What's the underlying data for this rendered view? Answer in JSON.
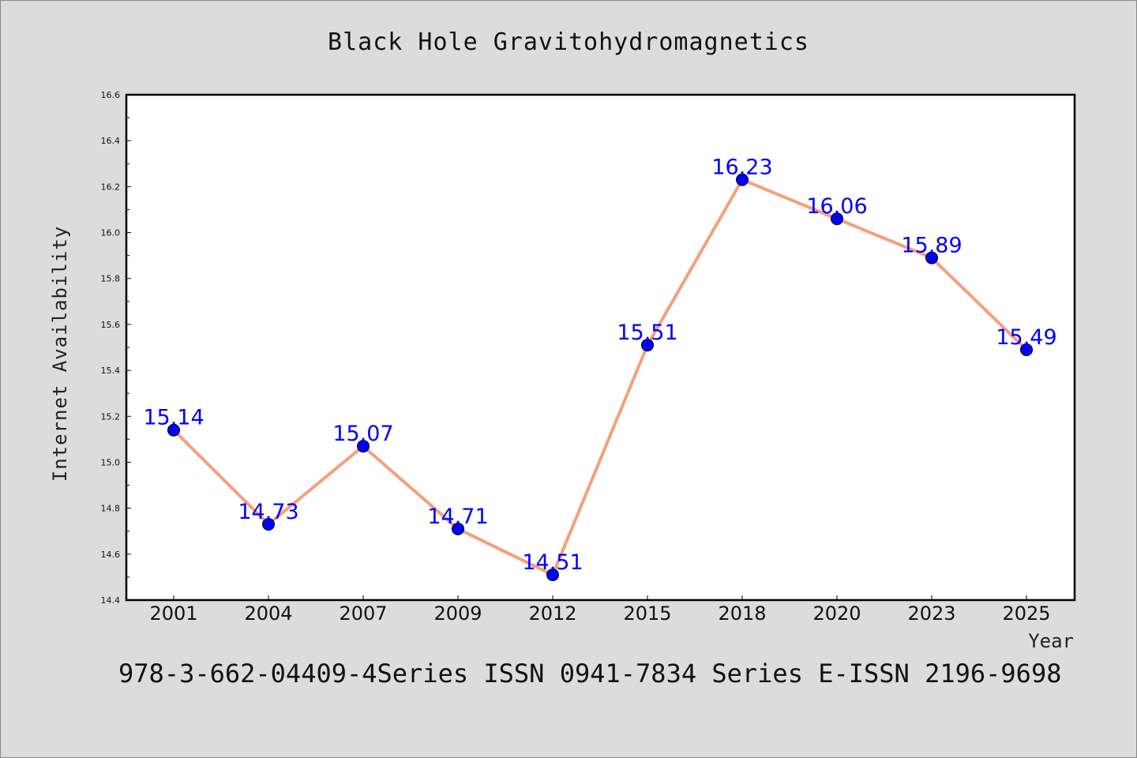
{
  "chart_data": {
    "type": "line",
    "title": "Black Hole Gravitohydromagnetics",
    "xlabel": "Year",
    "ylabel": "Internet Availability",
    "categories": [
      "2001",
      "2004",
      "2007",
      "2009",
      "2012",
      "2015",
      "2018",
      "2020",
      "2023",
      "2025"
    ],
    "series": [
      {
        "values": [
          15.14,
          14.73,
          15.07,
          14.71,
          14.51,
          15.51,
          16.23,
          16.06,
          15.89,
          15.49
        ],
        "data_labels": [
          "15.14",
          "14.73",
          "15.07",
          "14.71",
          "14.51",
          "15.51",
          "16.23",
          "16.06",
          "15.89",
          "15.49"
        ]
      }
    ],
    "ylim": [
      14.4,
      16.6
    ],
    "y_ticks": [
      "14.4",
      "14.6",
      "14.8",
      "15.0",
      "15.2",
      "15.4",
      "15.6",
      "15.8",
      "16.0",
      "16.2",
      "16.4",
      "16.6"
    ],
    "grid": false,
    "line_color": "#f4a07c",
    "marker_color": "#0000ff",
    "label_color": "#0000ff"
  },
  "footer": {
    "text": "978-3-662-04409-4Series ISSN 0941-7834 Series E-ISSN 2196-9698"
  }
}
